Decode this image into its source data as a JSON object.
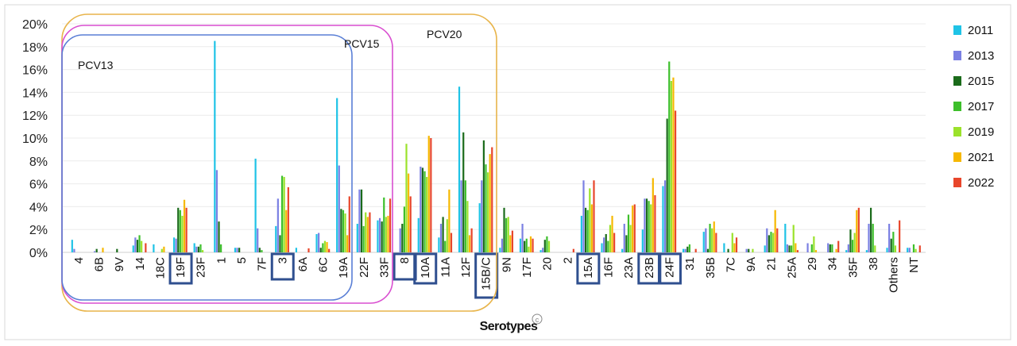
{
  "chart_data": {
    "type": "bar",
    "title": "",
    "xlabel": "Serotypes",
    "ylabel": "",
    "ylim": [
      0,
      20
    ],
    "ytick_labels": [
      "0%",
      "2%",
      "4%",
      "6%",
      "8%",
      "10%",
      "12%",
      "14%",
      "16%",
      "18%",
      "20%"
    ],
    "grid": true,
    "legend_position": "right",
    "categories": [
      "4",
      "6B",
      "9V",
      "14",
      "18C",
      "19F",
      "23F",
      "1",
      "5",
      "7F",
      "3",
      "6A",
      "6C",
      "19A",
      "22F",
      "33F",
      "8",
      "10A",
      "11A",
      "12F",
      "15B/C",
      "9N",
      "17F",
      "20",
      "2",
      "15A",
      "16F",
      "23A",
      "23B",
      "24F",
      "31",
      "35B",
      "7C",
      "9A",
      "21",
      "25A",
      "29",
      "34",
      "35F",
      "38",
      "Others",
      "NT"
    ],
    "highlighted_categories": [
      "19F",
      "3",
      "8",
      "10A",
      "15B/C",
      "15A",
      "23B",
      "24F"
    ],
    "vaccine_groups": [
      {
        "name": "PCV13",
        "color": "#5a7fd6"
      },
      {
        "name": "PCV15",
        "color": "#d94fd0"
      },
      {
        "name": "PCV20",
        "color": "#e8b44a"
      }
    ],
    "series": [
      {
        "name": "2011",
        "color": "#1fc3e6",
        "values": [
          1.1,
          0,
          0,
          0.6,
          0.7,
          1.3,
          0.8,
          18.5,
          0.4,
          8.2,
          2.3,
          0.4,
          1.6,
          13.5,
          2.5,
          2.8,
          0,
          3.0,
          1.3,
          14.5,
          4.3,
          0.4,
          1.2,
          0.2,
          0,
          3.2,
          0.8,
          0.3,
          2.0,
          5.8,
          0.3,
          1.8,
          0.8,
          0,
          0.6,
          2.5,
          0,
          0,
          0.2,
          0.2,
          0.4,
          0.4
        ]
      },
      {
        "name": "2013",
        "color": "#7b80e3",
        "values": [
          0.3,
          0.1,
          0,
          1.3,
          0,
          1.2,
          0.5,
          7.2,
          0.4,
          2.1,
          4.7,
          0,
          1.7,
          7.6,
          5.5,
          3.0,
          2.1,
          7.5,
          2.5,
          6.3,
          6.3,
          1.2,
          2.5,
          0.4,
          0,
          6.3,
          1.3,
          2.5,
          4.7,
          6.3,
          0.3,
          2.1,
          0,
          0.3,
          2.1,
          0.7,
          0.8,
          0.8,
          0.7,
          2.5,
          2.5,
          0.4
        ]
      },
      {
        "name": "2015",
        "color": "#1b6b1b",
        "values": [
          0,
          0.3,
          0.3,
          1.1,
          0,
          3.9,
          0.5,
          2.7,
          0.4,
          0.4,
          1.5,
          0,
          0.4,
          3.8,
          5.5,
          2.7,
          2.5,
          7.4,
          3.1,
          10.5,
          9.8,
          3.9,
          1.0,
          1.1,
          0,
          3.9,
          1.6,
          1.5,
          4.7,
          11.7,
          0.5,
          0.3,
          0.3,
          0.3,
          1.5,
          0.6,
          0,
          0.7,
          2.0,
          3.9,
          1.2,
          0
        ]
      },
      {
        "name": "2017",
        "color": "#3dbf2b",
        "values": [
          0,
          0,
          0,
          1.5,
          0,
          3.7,
          0.7,
          0.7,
          0,
          0.2,
          6.7,
          0,
          0.8,
          3.7,
          2.3,
          4.8,
          4.0,
          7.1,
          1.0,
          6.3,
          7.7,
          3.0,
          1.2,
          1.4,
          0,
          3.7,
          1.0,
          3.3,
          4.5,
          16.7,
          0.7,
          2.5,
          0,
          0,
          1.8,
          0.6,
          0.7,
          0.7,
          1.1,
          2.5,
          1.8,
          0.7
        ]
      },
      {
        "name": "2019",
        "color": "#9be22b",
        "values": [
          0,
          0,
          0,
          1.0,
          0.3,
          3.2,
          0.2,
          0,
          0,
          0,
          6.6,
          0,
          1.0,
          3.4,
          3.5,
          3.1,
          9.5,
          6.6,
          2.9,
          4.5,
          7.0,
          3.1,
          0.5,
          1.0,
          0,
          5.6,
          2.4,
          2.4,
          4.2,
          15.0,
          0,
          2.1,
          1.7,
          0.3,
          1.7,
          2.4,
          1.4,
          0,
          1.7,
          0.6,
          0.6,
          0.3
        ]
      },
      {
        "name": "2021",
        "color": "#f6b800",
        "values": [
          0,
          0.4,
          0,
          0,
          0.5,
          4.6,
          0,
          0,
          0,
          0,
          3.7,
          0,
          0.9,
          1.5,
          3.1,
          3.2,
          6.9,
          10.2,
          5.5,
          1.5,
          8.6,
          1.5,
          1.4,
          0,
          0,
          4.2,
          3.2,
          4.1,
          6.5,
          15.3,
          0,
          2.7,
          0.8,
          0,
          3.7,
          0.8,
          0.2,
          0.3,
          3.7,
          0,
          0,
          0
        ]
      },
      {
        "name": "2022",
        "color": "#e8462b",
        "values": [
          0,
          0,
          0,
          0.8,
          0,
          3.9,
          0,
          0,
          0,
          0,
          5.7,
          0.35,
          0.3,
          4.9,
          3.5,
          4.7,
          4.9,
          10.0,
          1.7,
          2.1,
          9.2,
          1.9,
          1.2,
          0,
          0.3,
          6.3,
          1.7,
          4.2,
          5.0,
          12.4,
          0.3,
          1.7,
          1.3,
          0,
          2.1,
          0.2,
          0,
          1.0,
          3.9,
          0,
          2.8,
          0.6
        ]
      }
    ]
  }
}
